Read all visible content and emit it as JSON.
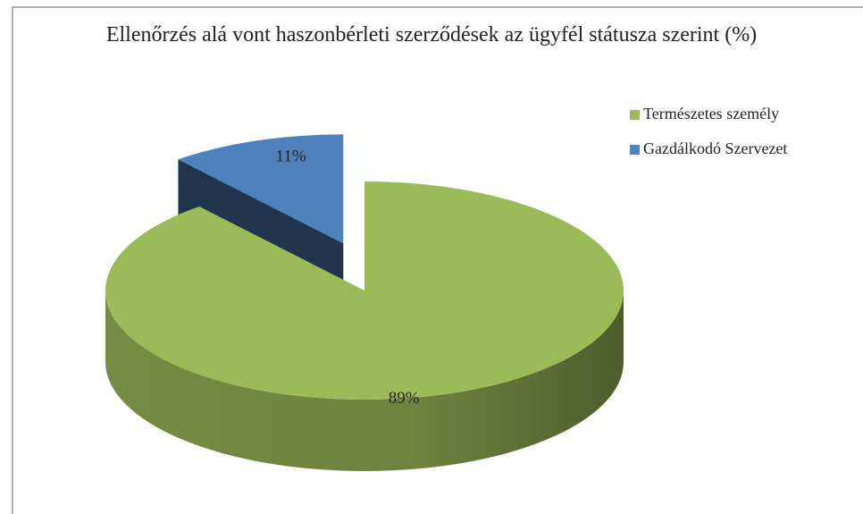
{
  "chart_data": {
    "type": "pie",
    "title": "Ellenőrzés alá vont haszonbérleti szerződések az ügyfél státusza szerint (%)",
    "categories": [
      "Természetes személy",
      "Gazdálkodó Szervezet"
    ],
    "values": [
      89,
      11
    ],
    "value_labels": [
      "89%",
      "11%"
    ],
    "colors": [
      "#9bbb59",
      "#4f81bd"
    ],
    "legend": "right"
  }
}
